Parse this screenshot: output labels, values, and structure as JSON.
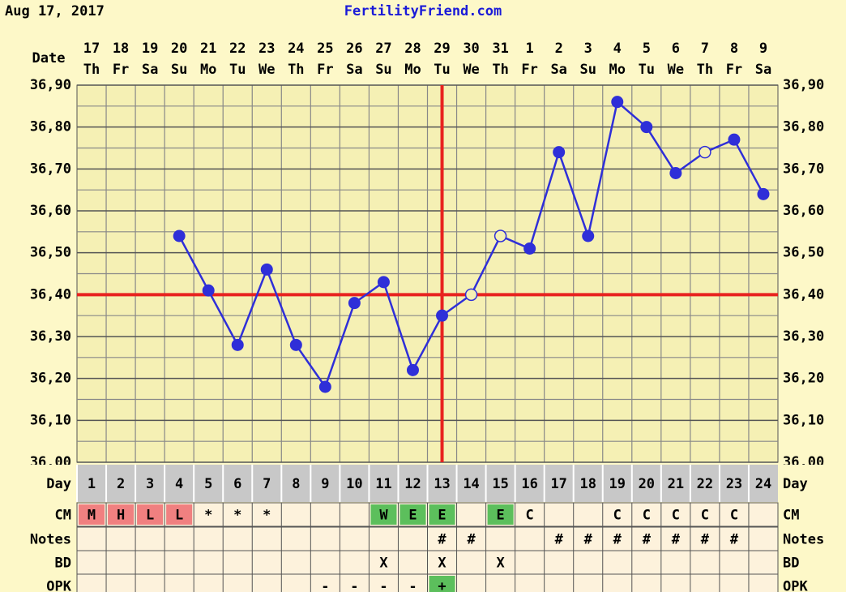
{
  "header": {
    "date": "Aug 17, 2017",
    "site": "FertilityFriend.com"
  },
  "chart_data": {
    "type": "line",
    "date_label": "Date",
    "day_label": "Day",
    "dates": [
      "17",
      "18",
      "19",
      "20",
      "21",
      "22",
      "23",
      "24",
      "25",
      "26",
      "27",
      "28",
      "29",
      "30",
      "31",
      "1",
      "2",
      "3",
      "4",
      "5",
      "6",
      "7",
      "8",
      "9"
    ],
    "weekdays": [
      "Th",
      "Fr",
      "Sa",
      "Su",
      "Mo",
      "Tu",
      "We",
      "Th",
      "Fr",
      "Sa",
      "Su",
      "Mo",
      "Tu",
      "We",
      "Th",
      "Fr",
      "Sa",
      "Su",
      "Mo",
      "Tu",
      "We",
      "Th",
      "Fr",
      "Sa"
    ],
    "categories": [
      "1",
      "2",
      "3",
      "4",
      "5",
      "6",
      "7",
      "8",
      "9",
      "10",
      "11",
      "12",
      "13",
      "14",
      "15",
      "16",
      "17",
      "18",
      "19",
      "20",
      "21",
      "22",
      "23",
      "24"
    ],
    "values": [
      null,
      null,
      null,
      36.54,
      36.41,
      36.28,
      36.46,
      36.28,
      36.18,
      36.38,
      36.43,
      36.22,
      36.35,
      36.4,
      36.54,
      36.51,
      36.74,
      36.54,
      36.86,
      36.8,
      36.69,
      36.74,
      36.77,
      36.64
    ],
    "hollow": [
      false,
      false,
      false,
      false,
      false,
      false,
      false,
      false,
      false,
      false,
      false,
      false,
      false,
      true,
      true,
      false,
      false,
      false,
      false,
      false,
      false,
      true,
      false,
      false
    ],
    "color": "#2f2fd8",
    "ylim": [
      36.0,
      36.9
    ],
    "yticks": [
      {
        "value": 36.0,
        "label": "36,00"
      },
      {
        "value": 36.1,
        "label": "36,10"
      },
      {
        "value": 36.2,
        "label": "36,20"
      },
      {
        "value": 36.3,
        "label": "36,30"
      },
      {
        "value": 36.4,
        "label": "36,40"
      },
      {
        "value": 36.5,
        "label": "36,50"
      },
      {
        "value": 36.6,
        "label": "36,60"
      },
      {
        "value": 36.7,
        "label": "36,70"
      },
      {
        "value": 36.8,
        "label": "36,80"
      },
      {
        "value": 36.9,
        "label": "36,90"
      }
    ],
    "ygrid": [
      36.05,
      36.15,
      36.25,
      36.35,
      36.45,
      36.55,
      36.65,
      36.75,
      36.85
    ],
    "coverline": 36.4,
    "ovulation_day": "13",
    "marker_line_color": "#e8221f",
    "rows": [
      {
        "label": "CM",
        "cells": [
          "M",
          "H",
          "L",
          "L",
          "*",
          "*",
          "*",
          null,
          null,
          null,
          "W",
          "E",
          "E",
          null,
          "E",
          "C",
          null,
          null,
          "C",
          "C",
          "C",
          "C",
          "C",
          null
        ],
        "fills": [
          "#f08080",
          "#f08080",
          "#f08080",
          "#f08080",
          null,
          null,
          null,
          null,
          null,
          null,
          "#5cbf5c",
          "#5cbf5c",
          "#5cbf5c",
          null,
          "#5cbf5c",
          null,
          null,
          null,
          null,
          null,
          null,
          null,
          null,
          null
        ]
      },
      {
        "label": "Notes",
        "cells": [
          null,
          null,
          null,
          null,
          null,
          null,
          null,
          null,
          null,
          null,
          null,
          null,
          "#",
          "#",
          null,
          null,
          "#",
          "#",
          "#",
          "#",
          "#",
          "#",
          "#",
          null
        ]
      },
      {
        "label": "BD",
        "cells": [
          null,
          null,
          null,
          null,
          null,
          null,
          null,
          null,
          null,
          null,
          "X",
          null,
          "X",
          null,
          "X",
          null,
          null,
          null,
          null,
          null,
          null,
          null,
          null,
          null
        ]
      },
      {
        "label": "OPK",
        "cells": [
          null,
          null,
          null,
          null,
          null,
          null,
          null,
          null,
          "-",
          "-",
          "-",
          "-",
          "+",
          null,
          null,
          null,
          null,
          null,
          null,
          null,
          null,
          null,
          null,
          null
        ],
        "fills": [
          null,
          null,
          null,
          null,
          null,
          null,
          null,
          null,
          null,
          null,
          null,
          null,
          "#5cbf5c",
          null,
          null,
          null,
          null,
          null,
          null,
          null,
          null,
          null,
          null,
          null
        ]
      }
    ]
  }
}
